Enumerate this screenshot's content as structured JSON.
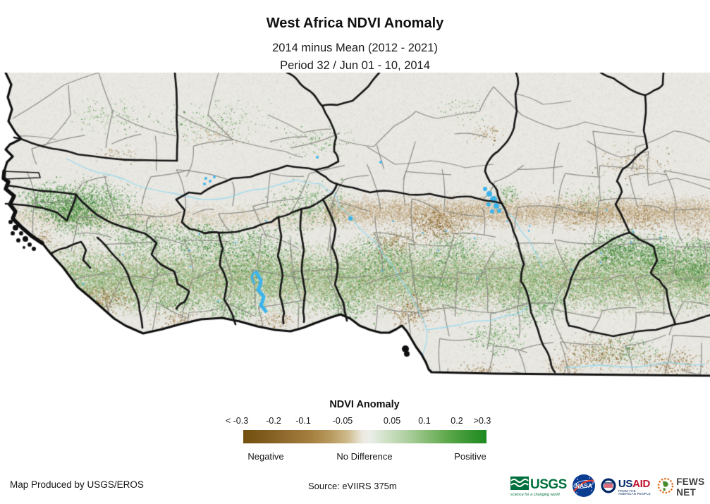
{
  "title": "West Africa NDVI Anomaly",
  "subtitle1": "2014 minus Mean (2012 - 2021)",
  "subtitle2": "Period 32 / Jun 01 - 10, 2014",
  "legend": {
    "title": "NDVI Anomaly",
    "ticks": [
      "< -0.3",
      "-0.2",
      "-0.1",
      "-0.05",
      "0.05",
      "0.1",
      "0.2",
      ">0.3"
    ],
    "labels": {
      "negative": "Negative",
      "no_difference": "No Difference",
      "positive": "Positive"
    },
    "colors": {
      "negative_end": "#74500f",
      "midpoint": "#eceeea",
      "positive_end": "#1d8a1f"
    }
  },
  "footer": {
    "produced_by": "Map Produced by USGS/EROS",
    "source": "Source: eVIIRS 375m"
  },
  "logos": {
    "usgs": "USGS",
    "usgs_tagline": "science for a changing world",
    "nasa": "NASA",
    "usaid_us": "US",
    "usaid_aid": "AID",
    "usaid_tagline": "FROM THE AMERICAN PEOPLE",
    "fewsnet": "FEWS NET"
  },
  "map": {
    "land_color": "#e9e8e3",
    "ocean_color": "#ffffff",
    "border_color": "#171717",
    "admin_color": "#8b8b84",
    "water_color": "#3eb4ea",
    "river_color": "#86d7f2"
  }
}
